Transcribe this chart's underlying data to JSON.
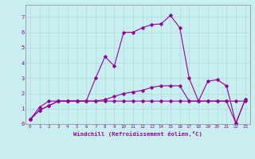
{
  "xlabel": "Windchill (Refroidissement éolien,°C)",
  "bg_color": "#c8eef0",
  "line_color": "#990099",
  "grid_color": "#aadddd",
  "spine_color": "#888888",
  "xlim": [
    -0.5,
    23.5
  ],
  "ylim": [
    0,
    7.8
  ],
  "xticks": [
    0,
    1,
    2,
    3,
    4,
    5,
    6,
    7,
    8,
    9,
    10,
    11,
    12,
    13,
    14,
    15,
    16,
    17,
    18,
    19,
    20,
    21,
    22,
    23
  ],
  "yticks": [
    0,
    1,
    2,
    3,
    4,
    5,
    6,
    7
  ],
  "series": [
    [
      0.3,
      0.9,
      1.2,
      1.5,
      1.5,
      1.5,
      1.5,
      1.5,
      1.5,
      1.5,
      1.5,
      1.5,
      1.5,
      1.5,
      1.5,
      1.5,
      1.5,
      1.5,
      1.5,
      1.5,
      1.5,
      1.5,
      1.5,
      1.5
    ],
    [
      0.3,
      0.9,
      1.2,
      1.5,
      1.5,
      1.5,
      1.5,
      1.5,
      1.6,
      1.8,
      2.0,
      2.1,
      2.2,
      2.4,
      2.5,
      2.5,
      2.5,
      1.5,
      1.5,
      2.8,
      2.9,
      2.5,
      0.05,
      1.6
    ],
    [
      0.3,
      1.1,
      1.5,
      1.5,
      1.5,
      1.5,
      1.5,
      3.0,
      4.4,
      3.8,
      6.0,
      6.0,
      6.3,
      6.5,
      6.55,
      7.1,
      6.3,
      3.0,
      1.5,
      1.5,
      1.5,
      1.5,
      0.05,
      1.6
    ]
  ]
}
